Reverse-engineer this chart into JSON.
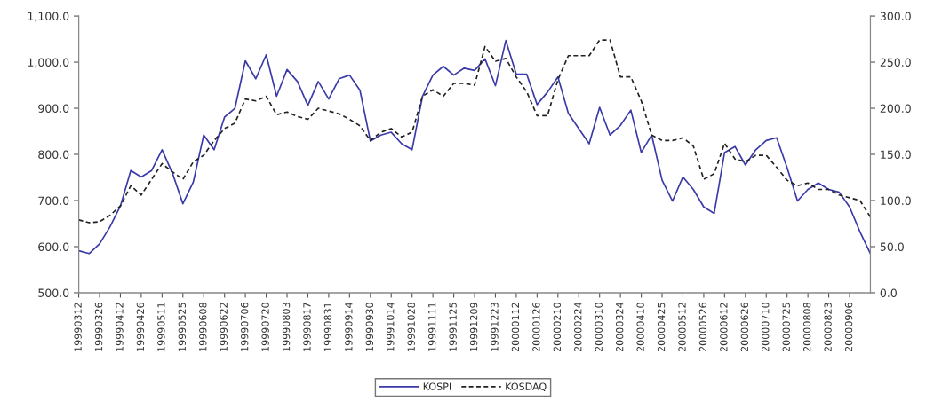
{
  "chart_data": {
    "type": "line",
    "categories": [
      "19990312",
      null,
      "19990326",
      null,
      "19990412",
      null,
      "19990426",
      null,
      "19990511",
      null,
      "19990525",
      null,
      "19990608",
      null,
      "19990622",
      null,
      "19990706",
      null,
      "19990720",
      null,
      "19990803",
      null,
      "19990817",
      null,
      "19990831",
      null,
      "19990914",
      null,
      "19990930",
      null,
      "19991014",
      null,
      "19991028",
      null,
      "19991111",
      null,
      "19991125",
      null,
      "19991209",
      null,
      "19991223",
      null,
      "20000112",
      null,
      "20000126",
      null,
      "20000210",
      null,
      "20000224",
      null,
      "20000310",
      null,
      "20000324",
      null,
      "20000410",
      null,
      "20000425",
      null,
      "20000512",
      null,
      "20000526",
      null,
      "20000612",
      null,
      "20000626",
      null,
      "20000710",
      null,
      "20000725",
      null,
      "20000808",
      null,
      "20000823",
      null,
      "20000906",
      null,
      null
    ],
    "series": [
      {
        "name": "KOSPI",
        "color": "#3a3aa8",
        "line_style": "solid",
        "values": [
          591,
          585,
          606,
          643,
          688,
          765,
          751,
          765,
          810,
          759,
          693,
          740,
          842,
          810,
          881,
          900,
          1003,
          964,
          1016,
          926,
          984,
          958,
          906,
          958,
          920,
          964,
          972,
          939,
          829,
          842,
          848,
          823,
          810,
          926,
          972,
          991,
          972,
          987,
          982,
          1007,
          949,
          1047,
          974,
          974,
          908,
          935,
          968,
          889,
          856,
          823,
          902,
          842,
          863,
          896,
          804,
          842,
          744,
          699,
          751,
          724,
          686,
          672,
          804,
          817,
          777,
          810,
          830,
          836,
          771,
          699,
          724,
          738,
          724,
          718,
          686,
          632,
          585
        ]
      },
      {
        "name": "KOSDAQ",
        "color": "#222222",
        "line_style": "dashed",
        "axis": "y2",
        "values": [
          79,
          76,
          77,
          84,
          94,
          116,
          106,
          123,
          140,
          131,
          123,
          142,
          149,
          165,
          178,
          184,
          210,
          208,
          213,
          193,
          196,
          191,
          188,
          200,
          197,
          194,
          188,
          181,
          165,
          174,
          178,
          169,
          174,
          213,
          220,
          213,
          227,
          227,
          225,
          267,
          251,
          254,
          234,
          218,
          192,
          192,
          231,
          257,
          257,
          257,
          274,
          274,
          234,
          234,
          208,
          171,
          165,
          165,
          168,
          159,
          123,
          129,
          162,
          145,
          142,
          149,
          149,
          136,
          122,
          116,
          119,
          112,
          112,
          106,
          103,
          100,
          82
        ]
      }
    ],
    "ylim": [
      500,
      1100
    ],
    "yticks": [
      {
        "value": 500,
        "label": "500.0"
      },
      {
        "value": 600,
        "label": "600.0"
      },
      {
        "value": 700,
        "label": "700.0"
      },
      {
        "value": 800,
        "label": "800.0"
      },
      {
        "value": 900,
        "label": "900.0"
      },
      {
        "value": 1000,
        "label": "1,000.0"
      },
      {
        "value": 1100,
        "label": "1,100.0"
      }
    ],
    "y2lim": [
      0,
      300
    ],
    "y2ticks": [
      {
        "value": 0,
        "label": "0.0"
      },
      {
        "value": 50,
        "label": "50.0"
      },
      {
        "value": 100,
        "label": "100.0"
      },
      {
        "value": 150,
        "label": "150.0"
      },
      {
        "value": 200,
        "label": "200.0"
      },
      {
        "value": 250,
        "label": "250.0"
      },
      {
        "value": 300,
        "label": "300.0"
      }
    ],
    "grid": false,
    "legend": "bottom",
    "marker": "none"
  }
}
